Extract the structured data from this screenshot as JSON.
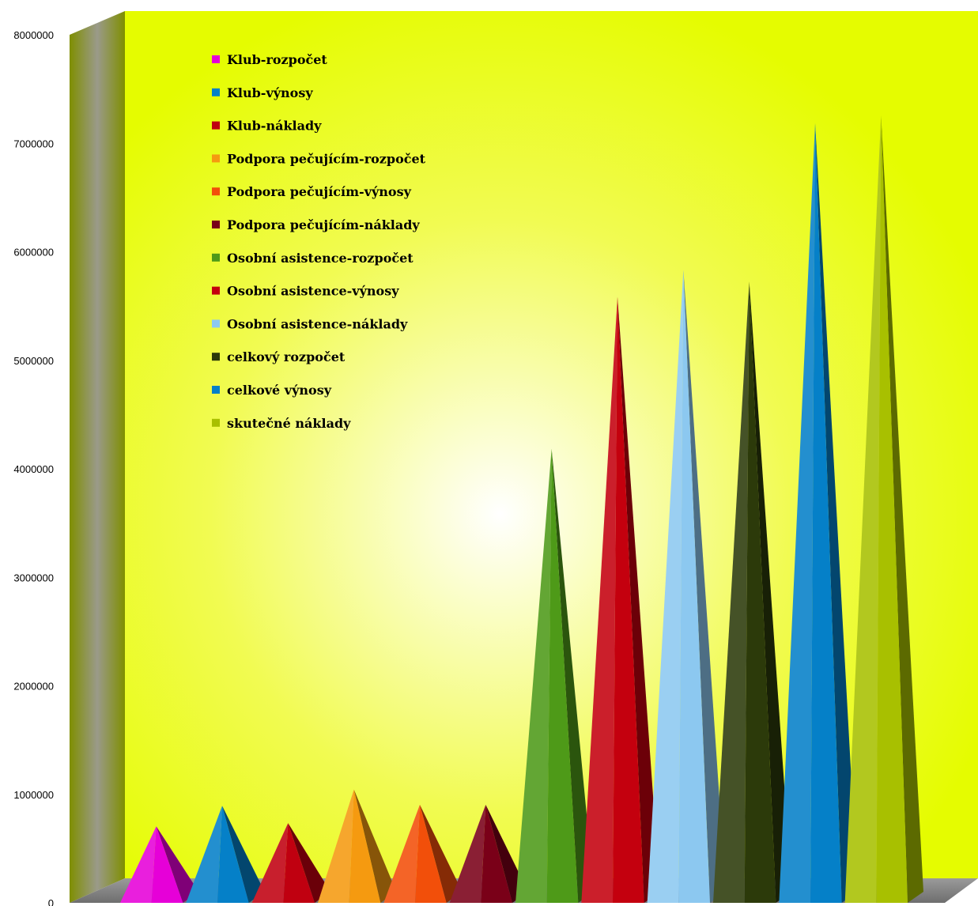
{
  "chart_data": {
    "type": "bar",
    "ylim": [
      0,
      8000000
    ],
    "ytick_labels": [
      "0",
      "1000000",
      "2000000",
      "3000000",
      "4000000",
      "5000000",
      "6000000",
      "7000000",
      "8000000"
    ],
    "grid": false,
    "legend_position": "top-left",
    "series": [
      {
        "name": "Klub-rozpočet",
        "value": 690000,
        "color": "#e600d8"
      },
      {
        "name": "Klub-výnosy",
        "value": 880000,
        "color": "#0580c8"
      },
      {
        "name": "Klub-náklady",
        "value": 720000,
        "color": "#c00010"
      },
      {
        "name": "Podpora pečujícím-rozpočet",
        "value": 1030000,
        "color": "#f59a10"
      },
      {
        "name": "Podpora pečujícím-výnosy",
        "value": 890000,
        "color": "#f24f0a"
      },
      {
        "name": "Podpora pečujícím-náklady",
        "value": 890000,
        "color": "#7a0018"
      },
      {
        "name": "Osobní asistence-rozpočet",
        "value": 4170000,
        "color": "#4e9a18"
      },
      {
        "name": "Osobní asistence-výnosy",
        "value": 5570000,
        "color": "#c4000e"
      },
      {
        "name": "Osobní asistence-náklady",
        "value": 5820000,
        "color": "#8cc8f0"
      },
      {
        "name": "celkový rozpočet",
        "value": 5710000,
        "color": "#2c3a0a"
      },
      {
        "name": "celkové výnosy",
        "value": 7170000,
        "color": "#0580c8"
      },
      {
        "name": "skutečné náklady",
        "value": 7240000,
        "color": "#a8c000"
      }
    ]
  }
}
